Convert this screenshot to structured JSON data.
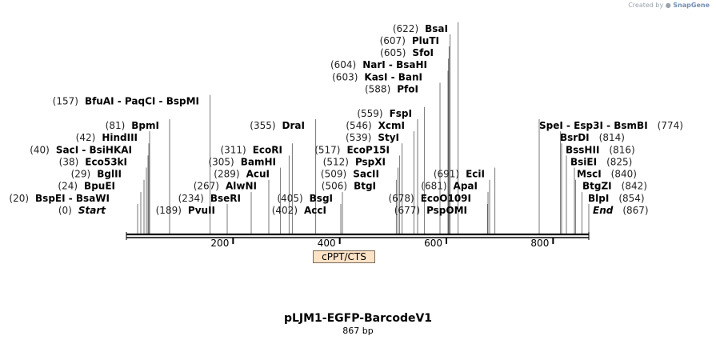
{
  "credit": {
    "text": "Created by",
    "brand": "SnapGene",
    "logo_icon": "snapgene-logo-icon"
  },
  "map": {
    "title": "pLJM1-EGFP-BarcodeV1",
    "length_label": "867 bp",
    "sequence_length": 867,
    "ticks": [
      200,
      400,
      600,
      800
    ],
    "features": [
      {
        "name": "cPPT/CTS",
        "color": "#fde2c6"
      }
    ],
    "sites": [
      {
        "pos": "(0)",
        "name": "Start",
        "bp": 0,
        "italic": true
      },
      {
        "pos": "(20)",
        "name": "BspEI  -  BsaWI",
        "bp": 20
      },
      {
        "pos": "(24)",
        "name": "BpuEI",
        "bp": 24
      },
      {
        "pos": "(29)",
        "name": "BglII",
        "bp": 29
      },
      {
        "pos": "(38)",
        "name": "Eco53kI",
        "bp": 38
      },
      {
        "pos": "(40)",
        "name": "SacI  -  BsiHKAI",
        "bp": 40
      },
      {
        "pos": "(42)",
        "name": "HindIII",
        "bp": 42
      },
      {
        "pos": "(81)",
        "name": "BpmI",
        "bp": 81
      },
      {
        "pos": "(157)",
        "name": "BfuAI  -  PaqCI  -  BspMI",
        "bp": 157
      },
      {
        "pos": "(189)",
        "name": "PvuII",
        "bp": 189
      },
      {
        "pos": "(234)",
        "name": "BseRI",
        "bp": 234
      },
      {
        "pos": "(267)",
        "name": "AlwNI",
        "bp": 267
      },
      {
        "pos": "(289)",
        "name": "AcuI",
        "bp": 289
      },
      {
        "pos": "(305)",
        "name": "BamHI",
        "bp": 305
      },
      {
        "pos": "(311)",
        "name": "EcoRI",
        "bp": 311
      },
      {
        "pos": "(355)",
        "name": "DraI",
        "bp": 355
      },
      {
        "pos": "(402)",
        "name": "AccI",
        "bp": 402
      },
      {
        "pos": "(405)",
        "name": "BsgI",
        "bp": 405
      },
      {
        "pos": "(506)",
        "name": "BtgI",
        "bp": 506
      },
      {
        "pos": "(509)",
        "name": "SacII",
        "bp": 509
      },
      {
        "pos": "(512)",
        "name": "PspXI",
        "bp": 512
      },
      {
        "pos": "(517)",
        "name": "EcoP15I",
        "bp": 517
      },
      {
        "pos": "(539)",
        "name": "StyI",
        "bp": 539
      },
      {
        "pos": "(546)",
        "name": "XcmI",
        "bp": 546
      },
      {
        "pos": "(559)",
        "name": "FspI",
        "bp": 559
      },
      {
        "pos": "(588)",
        "name": "PfoI",
        "bp": 588
      },
      {
        "pos": "(603)",
        "name": "KasI  -  BanI",
        "bp": 603
      },
      {
        "pos": "(604)",
        "name": "NarI  -  BsaHI",
        "bp": 604
      },
      {
        "pos": "(605)",
        "name": "SfoI",
        "bp": 605
      },
      {
        "pos": "(607)",
        "name": "PluTI",
        "bp": 607
      },
      {
        "pos": "(622)",
        "name": "BsaI",
        "bp": 622
      },
      {
        "pos": "(677)",
        "name": "PspOMI",
        "bp": 677
      },
      {
        "pos": "(678)",
        "name": "EcoO109I",
        "bp": 678
      },
      {
        "pos": "(681)",
        "name": "ApaI",
        "bp": 681
      },
      {
        "pos": "(691)",
        "name": "EciI",
        "bp": 691
      },
      {
        "pos": "(774)",
        "name": "SpeI  -  Esp3I  -  BsmBI",
        "bp": 774,
        "pos_right": true
      },
      {
        "pos": "(814)",
        "name": "BsrDI",
        "bp": 814,
        "pos_right": true
      },
      {
        "pos": "(816)",
        "name": "BssHII",
        "bp": 816,
        "pos_right": true
      },
      {
        "pos": "(825)",
        "name": "BsiEI",
        "bp": 825,
        "pos_right": true
      },
      {
        "pos": "(840)",
        "name": "MscI",
        "bp": 840,
        "pos_right": true
      },
      {
        "pos": "(842)",
        "name": "BtgZI",
        "bp": 842,
        "pos_right": true
      },
      {
        "pos": "(854)",
        "name": "BlpI",
        "bp": 854,
        "pos_right": true
      },
      {
        "pos": "(867)",
        "name": "End",
        "bp": 867,
        "italic": true,
        "pos_right": true
      }
    ]
  }
}
